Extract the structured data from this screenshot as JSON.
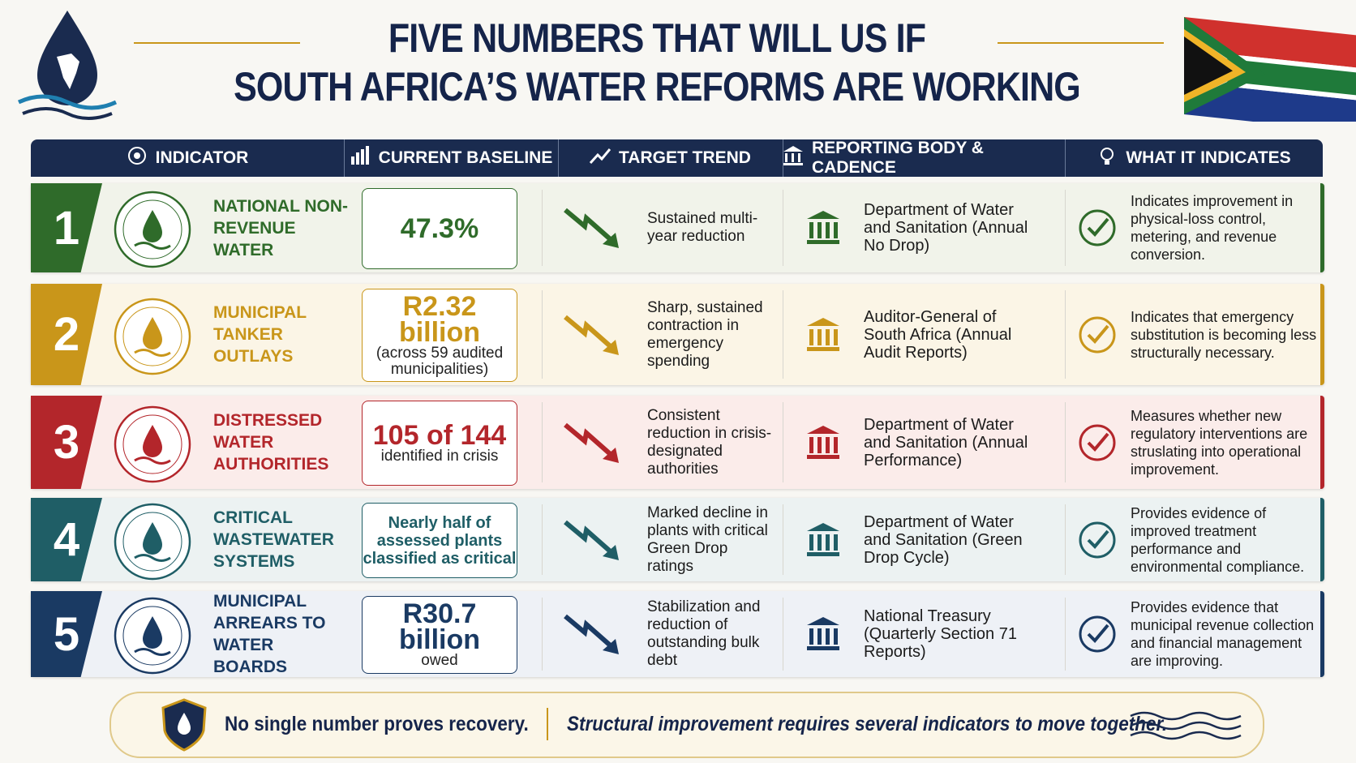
{
  "header": {
    "title_line1": "FIVE NUMBERS THAT WILL US IF",
    "title_line2": "SOUTH AFRICA’S WATER REFORMS ARE WORKING"
  },
  "table": {
    "columns": [
      "INDICATOR",
      "CURRENT BASELINE",
      "TARGET TREND",
      "REPORTING BODY & CADENCE",
      "WHAT IT INDICATES"
    ],
    "rows": [
      {
        "number": "1",
        "indicator": "NATIONAL NON-REVENUE WATER",
        "baseline": "47.3%",
        "trend": "Sustained multi-year reduction",
        "body": "Department of Water and Sanitation (Annual No Drop)",
        "indicates": "Indicates improvement in physical-loss control, metering, and revenue conversion."
      },
      {
        "number": "2",
        "indicator": "MUNICIPAL TANKER OUTLAYS",
        "baseline": "R2.32 billion",
        "baseline_note": "(across 59 audited municipalities)",
        "trend": "Sharp, sustained contraction in emergency spending",
        "body": "Auditor-General of South Africa (Annual Audit Reports)",
        "indicates": "Indicates that emergency substitution is becoming less structurally necessary."
      },
      {
        "number": "3",
        "indicator": "DISTRESSED WATER AUTHORITIES",
        "baseline": "105 of 144",
        "baseline_note": "identified in crisis",
        "trend": "Consistent reduction in crisis-designated authorities",
        "body": "Department of Water and Sanitation (Annual Performance)",
        "indicates": "Measures whether new regulatory interventions are struslating into operational improvement."
      },
      {
        "number": "4",
        "indicator": "CRITICAL WASTEWATER SYSTEMS",
        "baseline": "Nearly half of assessed plants classified as critical",
        "trend": "Marked decline in plants with critical Green Drop ratings",
        "body": "Department of Water and Sanitation (Green Drop Cycle)",
        "indicates": "Provides evidence of improved treatment performance and environmental compliance."
      },
      {
        "number": "5",
        "indicator": "MUNICIPAL ARREARS TO WATER BOARDS",
        "baseline": "R30.7 billion",
        "baseline_note": "owed",
        "trend": "Stabilization and reduction of outstanding bulk debt",
        "body": "National Treasury (Quarterly Section 71 Reports)",
        "indicates": "Provides evidence that municipal revenue collection and financial management are improving."
      }
    ]
  },
  "footer": {
    "left": "No single number proves recovery.",
    "right": "Structural improvement requires several indicators to move together."
  }
}
